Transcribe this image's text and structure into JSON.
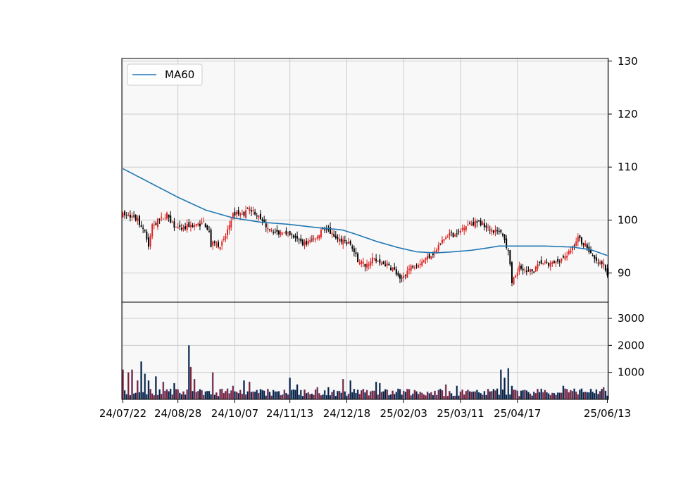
{
  "chart_data": [
    {
      "type": "candlestick",
      "panel": "price",
      "title": "",
      "xlabel": "",
      "ylabel": "",
      "ylim": [
        84.5,
        130.5
      ],
      "yticks": [
        90,
        100,
        110,
        120,
        130
      ],
      "grid": true,
      "legend": {
        "position": "top-left",
        "entries": [
          "MA60"
        ]
      },
      "colors": {
        "up": "#e02020",
        "down": "#000000",
        "ma": "#1f77b4",
        "background": "#f8f8f8",
        "grid": "#cccccc"
      },
      "anchors": [
        [
          0,
          101
        ],
        [
          4,
          100.5
        ],
        [
          8,
          100
        ],
        [
          12,
          98
        ],
        [
          14,
          95
        ],
        [
          16,
          99
        ],
        [
          20,
          100
        ],
        [
          24,
          101
        ],
        [
          28,
          99
        ],
        [
          32,
          98
        ],
        [
          36,
          99
        ],
        [
          40,
          99
        ],
        [
          44,
          99.5
        ],
        [
          47,
          98
        ],
        [
          48,
          95
        ],
        [
          50,
          96
        ],
        [
          53,
          95
        ],
        [
          56,
          97
        ],
        [
          58,
          99
        ],
        [
          60,
          101
        ],
        [
          62,
          101.5
        ],
        [
          65,
          101
        ],
        [
          68,
          102
        ],
        [
          72,
          101.5
        ],
        [
          76,
          99.5
        ],
        [
          80,
          98.5
        ],
        [
          84,
          97.5
        ],
        [
          88,
          98
        ],
        [
          92,
          97
        ],
        [
          96,
          96
        ],
        [
          99,
          95.5
        ],
        [
          102,
          96
        ],
        [
          106,
          97
        ],
        [
          109,
          98.5
        ],
        [
          112,
          98
        ],
        [
          116,
          96.5
        ],
        [
          120,
          96
        ],
        [
          124,
          95.5
        ],
        [
          126,
          94
        ],
        [
          128,
          92.5
        ],
        [
          132,
          91.5
        ],
        [
          136,
          92.5
        ],
        [
          140,
          92
        ],
        [
          144,
          91.5
        ],
        [
          148,
          90.5
        ],
        [
          151,
          88.5
        ],
        [
          154,
          90
        ],
        [
          158,
          91.5
        ],
        [
          162,
          92
        ],
        [
          166,
          93
        ],
        [
          170,
          94
        ],
        [
          174,
          96
        ],
        [
          178,
          97.5
        ],
        [
          182,
          97
        ],
        [
          186,
          99
        ],
        [
          190,
          99.5
        ],
        [
          194,
          99.5
        ],
        [
          198,
          99
        ],
        [
          202,
          98
        ],
        [
          206,
          97.5
        ],
        [
          208,
          96
        ],
        [
          210,
          94.5
        ],
        [
          212,
          88.5
        ],
        [
          214,
          89
        ],
        [
          216,
          91.5
        ],
        [
          218,
          91
        ],
        [
          220,
          90
        ],
        [
          224,
          90.5
        ],
        [
          228,
          92
        ],
        [
          232,
          91.5
        ],
        [
          236,
          92
        ],
        [
          240,
          93
        ],
        [
          244,
          94
        ],
        [
          248,
          96.5
        ],
        [
          252,
          95.5
        ],
        [
          256,
          93
        ],
        [
          258,
          92
        ],
        [
          262,
          91.5
        ],
        [
          264,
          90
        ]
      ],
      "ma60": [
        [
          0,
          109.7
        ],
        [
          5,
          108.8
        ],
        [
          15,
          107.0
        ],
        [
          30,
          104.3
        ],
        [
          45,
          101.9
        ],
        [
          60,
          100.4
        ],
        [
          75,
          99.6
        ],
        [
          90,
          99.2
        ],
        [
          105,
          98.6
        ],
        [
          115,
          98.3
        ],
        [
          120,
          98.1
        ],
        [
          128,
          97.2
        ],
        [
          138,
          96.0
        ],
        [
          150,
          94.8
        ],
        [
          160,
          94.0
        ],
        [
          170,
          93.8
        ],
        [
          180,
          94.0
        ],
        [
          190,
          94.3
        ],
        [
          200,
          94.8
        ],
        [
          205,
          95.1
        ],
        [
          215,
          95.1
        ],
        [
          230,
          95.1
        ],
        [
          245,
          94.9
        ],
        [
          255,
          94.4
        ],
        [
          264,
          93.3
        ]
      ]
    },
    {
      "type": "bar",
      "panel": "volume",
      "title": "",
      "ylim": [
        0,
        3600
      ],
      "yticks": [
        1000,
        2000,
        3000
      ],
      "grid": true,
      "x_labels": [
        "24/07/22",
        "24/08/28",
        "24/10/07",
        "24/11/13",
        "24/12/18",
        "25/02/03",
        "25/03/11",
        "25/04/17",
        "25/06/13"
      ],
      "x_label_index": [
        0,
        30,
        61,
        91,
        122,
        153,
        184,
        215,
        264
      ],
      "spikes": [
        [
          0,
          1100
        ],
        [
          3,
          1000
        ],
        [
          5,
          1100
        ],
        [
          8,
          700
        ],
        [
          10,
          1400
        ],
        [
          12,
          950
        ],
        [
          14,
          700
        ],
        [
          18,
          850
        ],
        [
          22,
          650
        ],
        [
          28,
          600
        ],
        [
          36,
          2000
        ],
        [
          37,
          1200
        ],
        [
          39,
          750
        ],
        [
          49,
          1000
        ],
        [
          60,
          500
        ],
        [
          66,
          700
        ],
        [
          69,
          650
        ],
        [
          91,
          800
        ],
        [
          95,
          550
        ],
        [
          106,
          450
        ],
        [
          112,
          450
        ],
        [
          120,
          750
        ],
        [
          124,
          700
        ],
        [
          138,
          650
        ],
        [
          140,
          600
        ],
        [
          176,
          550
        ],
        [
          182,
          500
        ],
        [
          204,
          400
        ],
        [
          206,
          1100
        ],
        [
          208,
          800
        ],
        [
          210,
          1150
        ],
        [
          212,
          500
        ],
        [
          240,
          500
        ],
        [
          250,
          400
        ],
        [
          262,
          450
        ]
      ]
    }
  ]
}
